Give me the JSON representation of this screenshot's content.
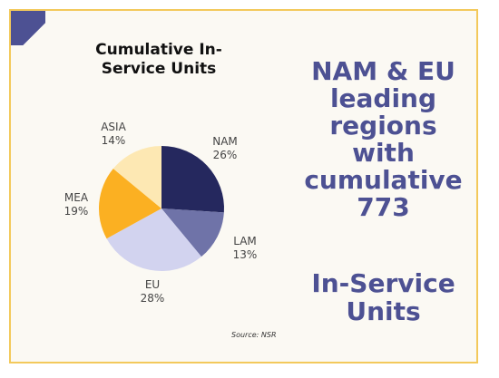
{
  "headline": {
    "lines": [
      "NAM & EU",
      "leading",
      "regions",
      "with",
      "cumulative",
      "773"
    ]
  },
  "subline": {
    "lines": [
      "In-Service",
      "Units"
    ]
  },
  "source": "Source: NSR",
  "colors": {
    "accent": "#4d5193",
    "border": "#f3c95b",
    "background": "#fbf9f3"
  },
  "chart_data": {
    "type": "pie",
    "title_lines": [
      "Cumulative In-",
      "Service Units"
    ],
    "slices": [
      {
        "label": "NAM",
        "value": 26,
        "pct_label": "26%",
        "color": "#25285e"
      },
      {
        "label": "LAM",
        "value": 13,
        "pct_label": "13%",
        "color": "#6f73a8"
      },
      {
        "label": "EU",
        "value": 28,
        "pct_label": "28%",
        "color": "#d2d3ef"
      },
      {
        "label": "MEA",
        "value": 19,
        "pct_label": "19%",
        "color": "#fbb022"
      },
      {
        "label": "ASIA",
        "value": 14,
        "pct_label": "14%",
        "color": "#fde8b3"
      }
    ],
    "legend": "none"
  }
}
